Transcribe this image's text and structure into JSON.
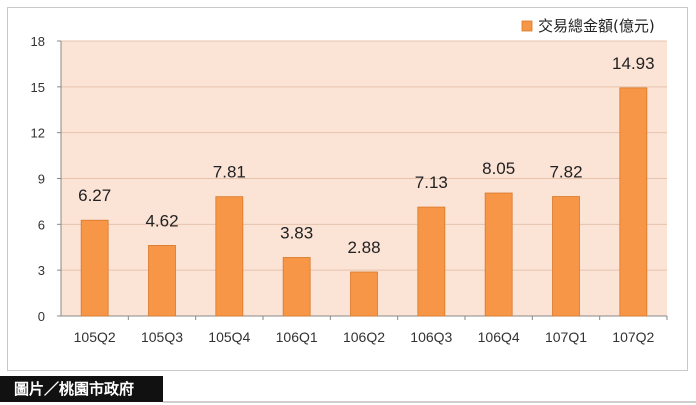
{
  "chart_data": {
    "type": "bar",
    "categories": [
      "105Q2",
      "105Q3",
      "105Q4",
      "106Q1",
      "106Q2",
      "106Q3",
      "106Q4",
      "107Q1",
      "107Q2"
    ],
    "series": [
      {
        "name": "交易總金額(億元)",
        "values": [
          6.27,
          4.62,
          7.81,
          3.83,
          2.88,
          7.13,
          8.05,
          7.82,
          14.93
        ]
      }
    ],
    "data_labels": [
      "6.27",
      "4.62",
      "7.81",
      "3.83",
      "2.88",
      "7.13",
      "8.05",
      "7.82",
      "14.93"
    ],
    "y_ticks": [
      0,
      3,
      6,
      9,
      12,
      15,
      18
    ],
    "ylim": [
      0,
      18
    ],
    "grid": true,
    "legend_position": "top-right",
    "colors": {
      "bar": "#f79646",
      "bar_edge": "#d8782a",
      "plot_bg": "#fbe3d6",
      "grid": "#e7c3ad"
    }
  },
  "caption": {
    "text": "圖片／桃園市政府"
  }
}
